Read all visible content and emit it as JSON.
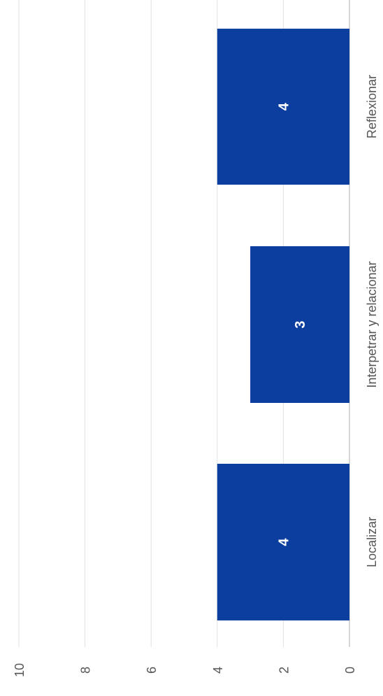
{
  "chart_data": {
    "type": "bar",
    "categories": [
      "Localizar",
      "Interpetrar y relacionar",
      "Reflexionar"
    ],
    "values": [
      4,
      3,
      4
    ],
    "data_labels": [
      "4",
      "3",
      "4"
    ],
    "y_ticks": [
      "0",
      "2",
      "4",
      "6",
      "8",
      "10"
    ],
    "ylim": [
      0,
      10
    ],
    "grid": true,
    "orientation": "rotated 90 degrees clockwise (value axis runs right to left)",
    "colors": {
      "bar": "#0b3e9e",
      "grid": "#e2e2e2",
      "text": "#555555"
    }
  }
}
